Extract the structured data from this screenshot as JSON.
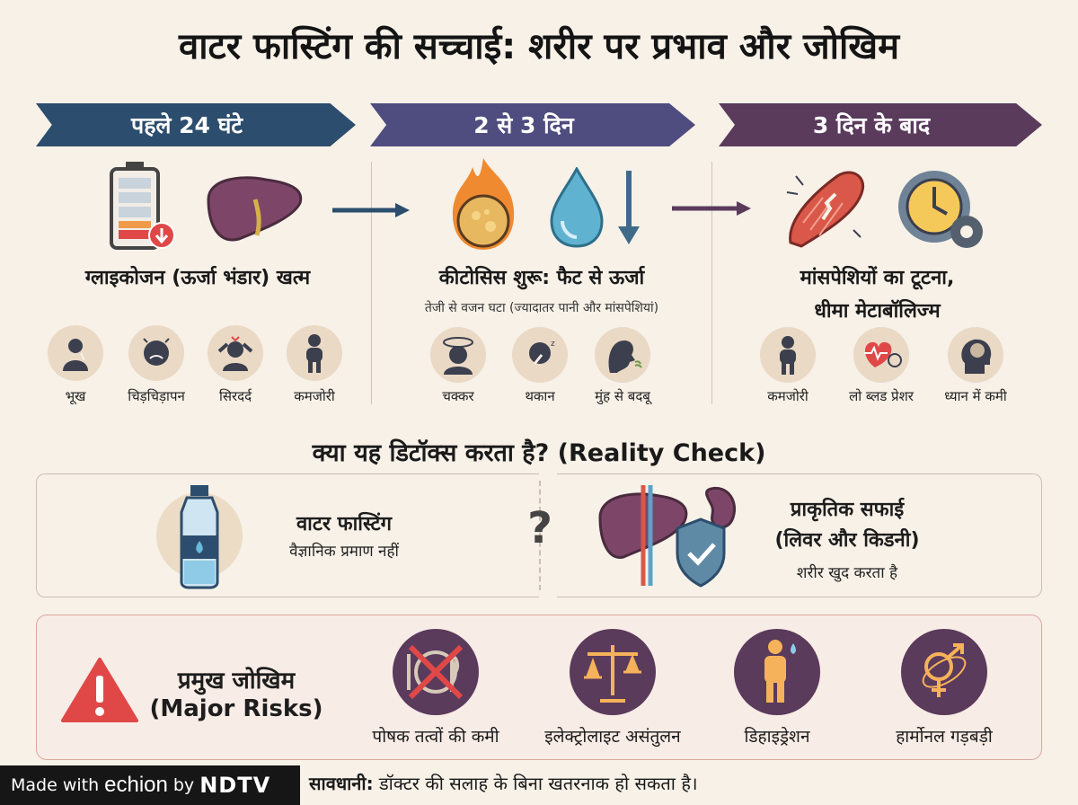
{
  "title": "वाटर फास्टिंग की सच्चाई: शरीर पर प्रभाव और जोखिम",
  "phases": [
    {
      "label": "पहले 24 घंटे",
      "heading": "ग्लाइकोजन (ऊर्जा भंडार) खत्म",
      "symptoms": [
        "भूख",
        "चिड़चिड़ापन",
        "सिरदर्द",
        "कमजोरी"
      ]
    },
    {
      "label": "2 से 3 दिन",
      "heading": "कीटोसिस शुरू: फैट से ऊर्जा",
      "subheading": "तेजी से वजन घटा (ज्यादातर पानी और मांसपेशियां)",
      "symptoms": [
        "चक्कर",
        "थकान",
        "मुंह से बदबू"
      ]
    },
    {
      "label": "3 दिन के बाद",
      "heading_line1": "मांसपेशियों का टूटना,",
      "heading_line2": "धीमा मेटाबॉलिज्म",
      "symptoms": [
        "कमजोरी",
        "लो ब्लड प्रेशर",
        "ध्यान में कमी"
      ]
    }
  ],
  "reality_check": {
    "question": "क्या यह डिटॉक्स करता है? (Reality Check)",
    "left_title": "वाटर फास्टिंग",
    "left_sub": "वैज्ञानिक प्रमाण नहीं",
    "mark": "?",
    "right_title_line1": "प्राकृतिक सफाई",
    "right_title_line2": "(लिवर और किडनी)",
    "right_sub": "शरीर खुद करता है"
  },
  "risks": {
    "title_line1": "प्रमुख जोखिम",
    "title_line2": "(Major Risks)",
    "items": [
      "पोषक तत्वों की कमी",
      "इलेक्ट्रोलाइट असंतुलन",
      "डिहाइड्रेशन",
      "हार्मोनल गड़बड़ी"
    ]
  },
  "badge": {
    "made_with": "Made with",
    "brand": "echion",
    "by": "by",
    "org": "NDTV"
  },
  "caution": {
    "label": "सावधानी:",
    "text": "डॉक्टर की सलाह के बिना खतरनाक हो सकता है।"
  },
  "colors": {
    "phase1": "#2c4d6d",
    "phase2": "#4f4c7f",
    "phase3": "#5a3b5c",
    "risk_red": "#e04848",
    "background": "#f7f1e8"
  }
}
